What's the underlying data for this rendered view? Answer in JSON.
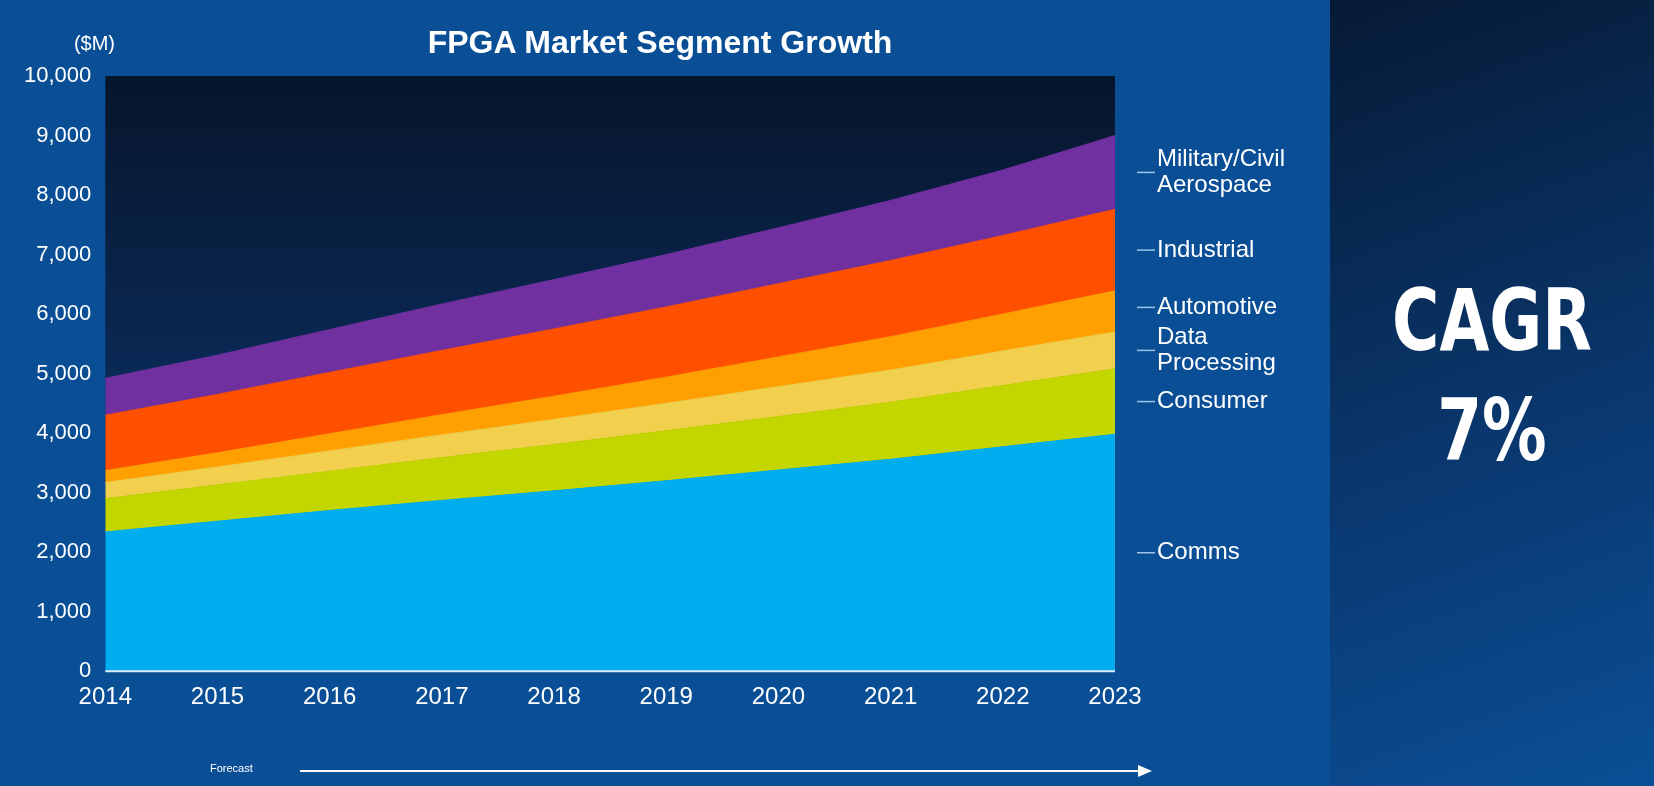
{
  "chart_data": {
    "type": "area",
    "title": "FPGA Market Segment Growth",
    "ylabel": "($M)",
    "categories": [
      "2014",
      "2015",
      "2016",
      "2017",
      "2018",
      "2019",
      "2020",
      "2021",
      "2022",
      "2023"
    ],
    "stacked": true,
    "grid": false,
    "legend": false,
    "marker": "none",
    "ylim": [
      0,
      10000
    ],
    "yticks": [
      {
        "value": 0,
        "label": "0"
      },
      {
        "value": 1000,
        "label": "1,000"
      },
      {
        "value": 2000,
        "label": "2,000"
      },
      {
        "value": 3000,
        "label": "3,000"
      },
      {
        "value": 4000,
        "label": "4,000"
      },
      {
        "value": 5000,
        "label": "5,000"
      },
      {
        "value": 6000,
        "label": "6,000"
      },
      {
        "value": 7000,
        "label": "7,000"
      },
      {
        "value": 8000,
        "label": "8,000"
      },
      {
        "value": 9000,
        "label": "9,000"
      },
      {
        "value": 10000,
        "label": "10,000"
      }
    ],
    "series": [
      {
        "name": "Comms",
        "color": "#00aeef",
        "values": [
          2340,
          2520,
          2700,
          2870,
          3030,
          3200,
          3380,
          3560,
          3770,
          3980
        ]
      },
      {
        "name": "Consumer",
        "color": "#c4d600",
        "values": [
          560,
          610,
          660,
          720,
          780,
          840,
          900,
          960,
          1030,
          1100
        ]
      },
      {
        "name": "Data Processing",
        "color": "#f2d04e",
        "values": [
          270,
          300,
          340,
          380,
          420,
          460,
          500,
          540,
          580,
          620
        ]
      },
      {
        "name": "Automotive",
        "color": "#ffa000",
        "values": [
          200,
          240,
          290,
          340,
          390,
          440,
          500,
          560,
          620,
          690
        ]
      },
      {
        "name": "Industrial",
        "color": "#ff5000",
        "values": [
          930,
          980,
          1030,
          1080,
          1130,
          1180,
          1230,
          1280,
          1320,
          1370
        ]
      },
      {
        "name": "Military/Civil Aerospace",
        "color": "#7030a0",
        "values": [
          620,
          660,
          720,
          780,
          830,
          880,
          940,
          1010,
          1100,
          1240
        ]
      }
    ],
    "annotations": [
      "Forecast",
      "CAGR",
      "7%"
    ]
  }
}
